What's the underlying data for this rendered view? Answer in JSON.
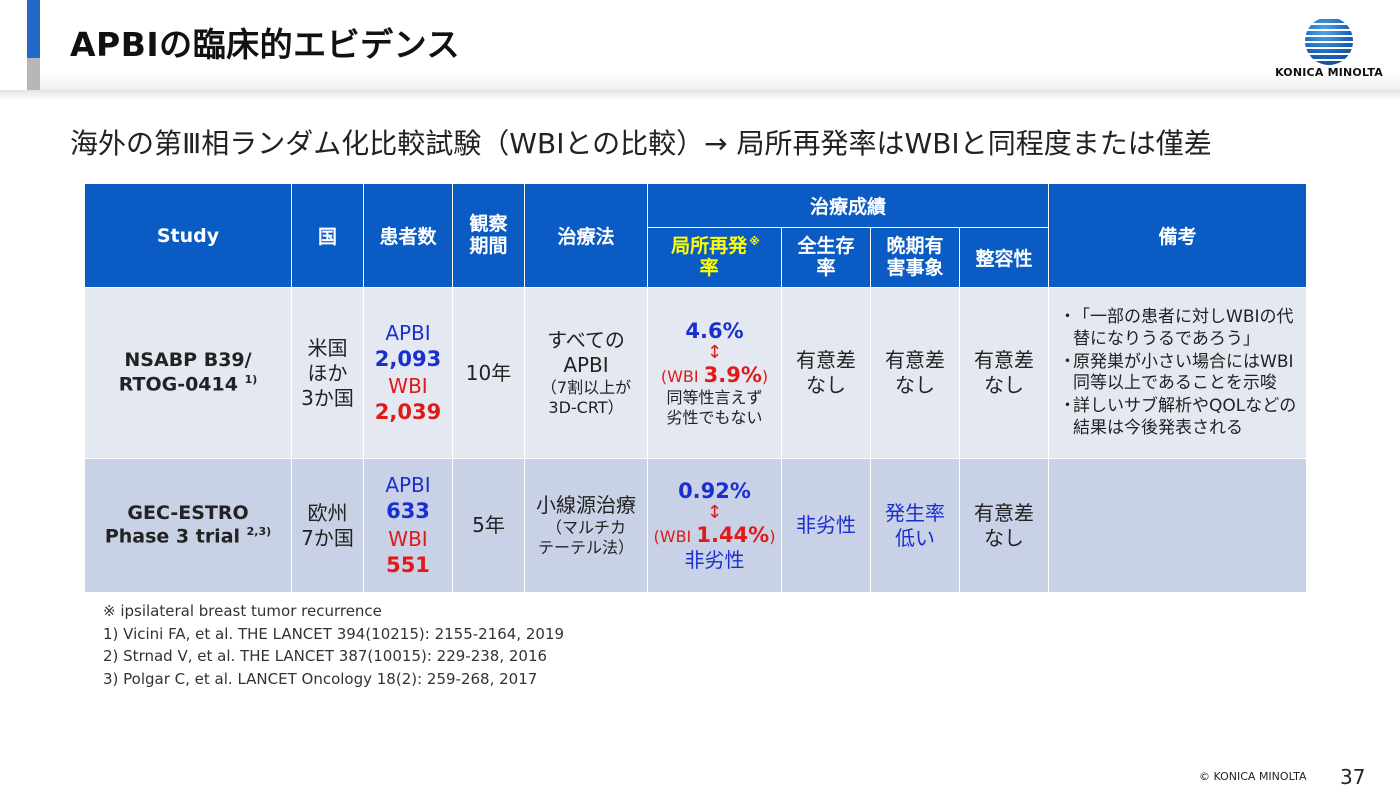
{
  "header": {
    "title": "APBIの臨床的エビデンス",
    "logo_text": "KONICA MINOLTA"
  },
  "subtitle": "海外の第Ⅲ相ランダム化比較試験（WBIとの比較）→ 局所再発率はWBIと同程度または僅差",
  "table": {
    "headers": {
      "study": "Study",
      "country": "国",
      "patients": "患者数",
      "follow_up": "観察期間",
      "treatment": "治療法",
      "outcomes_group": "治療成績",
      "local_recurrence": "局所再発率",
      "local_recurrence_mark": "※",
      "overall_survival": "全生存率",
      "late_adverse": "晩期有害事象",
      "cosmetic": "整容性",
      "remarks": "備考"
    },
    "rows": [
      {
        "study_line1": "NSABP B39/",
        "study_line2": "RTOG-0414",
        "study_ref": "1)",
        "country_lines": [
          "米国",
          "ほか",
          "3か国"
        ],
        "apbi_label": "APBI",
        "apbi_count": "2,093",
        "wbi_label": "WBI",
        "wbi_count": "2,039",
        "follow_up": "10年",
        "treatment_line1": "すべての",
        "treatment_line2": "APBI",
        "treatment_line3": "（7割以上が",
        "treatment_line4": "3D-CRT）",
        "recurrence_apbi": "4.6%",
        "arrow": "↕",
        "recurrence_wbi_prefix": "(WBI ",
        "recurrence_wbi_value": "3.9%",
        "recurrence_wbi_suffix": ")",
        "recurrence_note_line1": "同等性言えず",
        "recurrence_note_line2": "劣性でもない",
        "overall_survival": [
          "有意差",
          "なし"
        ],
        "late_adverse": [
          "有意差",
          "なし"
        ],
        "cosmetic": [
          "有意差",
          "なし"
        ],
        "remarks": [
          {
            "bullet": "・",
            "text": "「一部の患者に対しWBIの代替になりうるであろう」"
          },
          {
            "bullet": "・",
            "text": "原発巣が小さい場合にはWBI同等以上であることを示唆"
          },
          {
            "bullet": "・",
            "text": "詳しいサブ解析やQOLなどの結果は今後発表される"
          }
        ]
      },
      {
        "study_line1": "GEC-ESTRO",
        "study_line2": "Phase 3 trial",
        "study_ref": "2,3)",
        "country_lines": [
          "欧州",
          "7か国"
        ],
        "apbi_label": "APBI",
        "apbi_count": "633",
        "wbi_label": "WBI",
        "wbi_count": "551",
        "follow_up": "5年",
        "treatment_line1": "小線源治療",
        "treatment_line2": "（マルチカ",
        "treatment_line3": "テーテル法）",
        "recurrence_apbi": "0.92%",
        "arrow": "↕",
        "recurrence_wbi_prefix": "(WBI ",
        "recurrence_wbi_value": "1.44%",
        "recurrence_wbi_suffix": ")",
        "recurrence_note_line1": "非劣性",
        "overall_survival": [
          "非劣性"
        ],
        "late_adverse": [
          "発生率",
          "低い"
        ],
        "cosmetic": [
          "有意差",
          "なし"
        ]
      }
    ]
  },
  "footnotes": [
    "※ ipsilateral breast tumor recurrence",
    "1) Vicini FA, et al. THE LANCET 394(10215): 2155-2164, 2019",
    "2) Strnad V, et al. THE LANCET 387(10015): 229-238, 2016",
    "3) Polgar C, et al. LANCET Oncology 18(2): 259-268, 2017"
  ],
  "footer": {
    "copyright": "© KONICA MINOLTA",
    "page_number": "37"
  }
}
